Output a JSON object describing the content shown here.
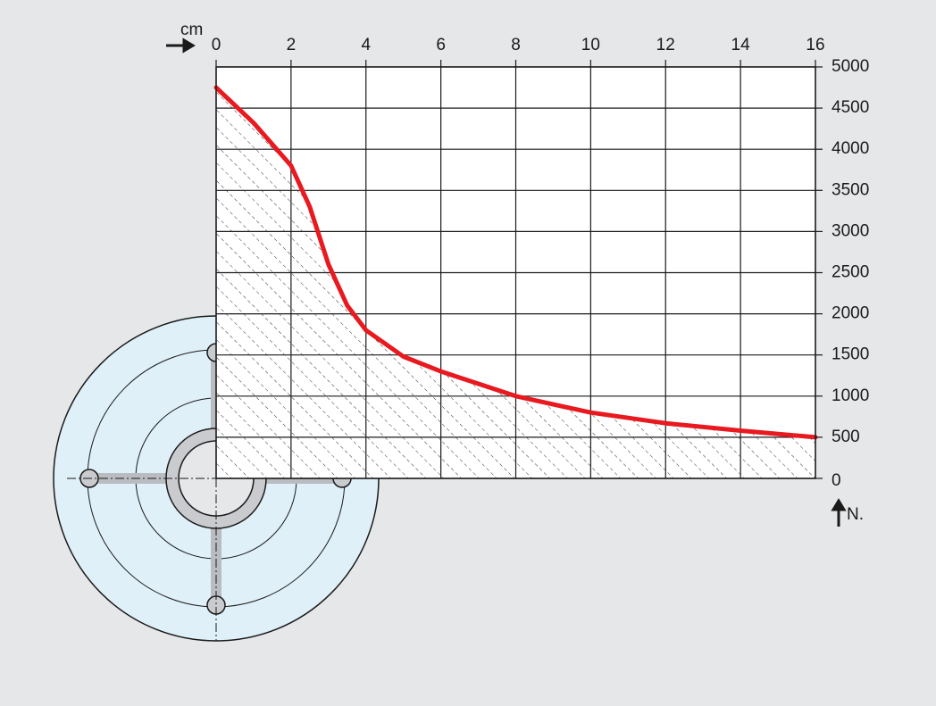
{
  "chart_data": {
    "type": "line",
    "x_label": "cm",
    "y_label": "N.",
    "x": [
      0,
      1,
      2,
      2.5,
      3,
      3.5,
      4,
      5,
      6,
      8,
      10,
      12,
      14,
      16
    ],
    "values": [
      4750,
      4320,
      3800,
      3300,
      2600,
      2100,
      1800,
      1480,
      1300,
      1000,
      800,
      670,
      580,
      500
    ],
    "color": "#e8191f",
    "xlim": [
      0,
      16
    ],
    "xticks": [
      0,
      2,
      4,
      6,
      8,
      10,
      12,
      14,
      16
    ],
    "ylim": [
      0,
      5000
    ],
    "yticks": [
      0,
      500,
      1000,
      1500,
      2000,
      2500,
      3000,
      3500,
      4000,
      4500,
      5000
    ],
    "grid": true,
    "hatched": true
  }
}
